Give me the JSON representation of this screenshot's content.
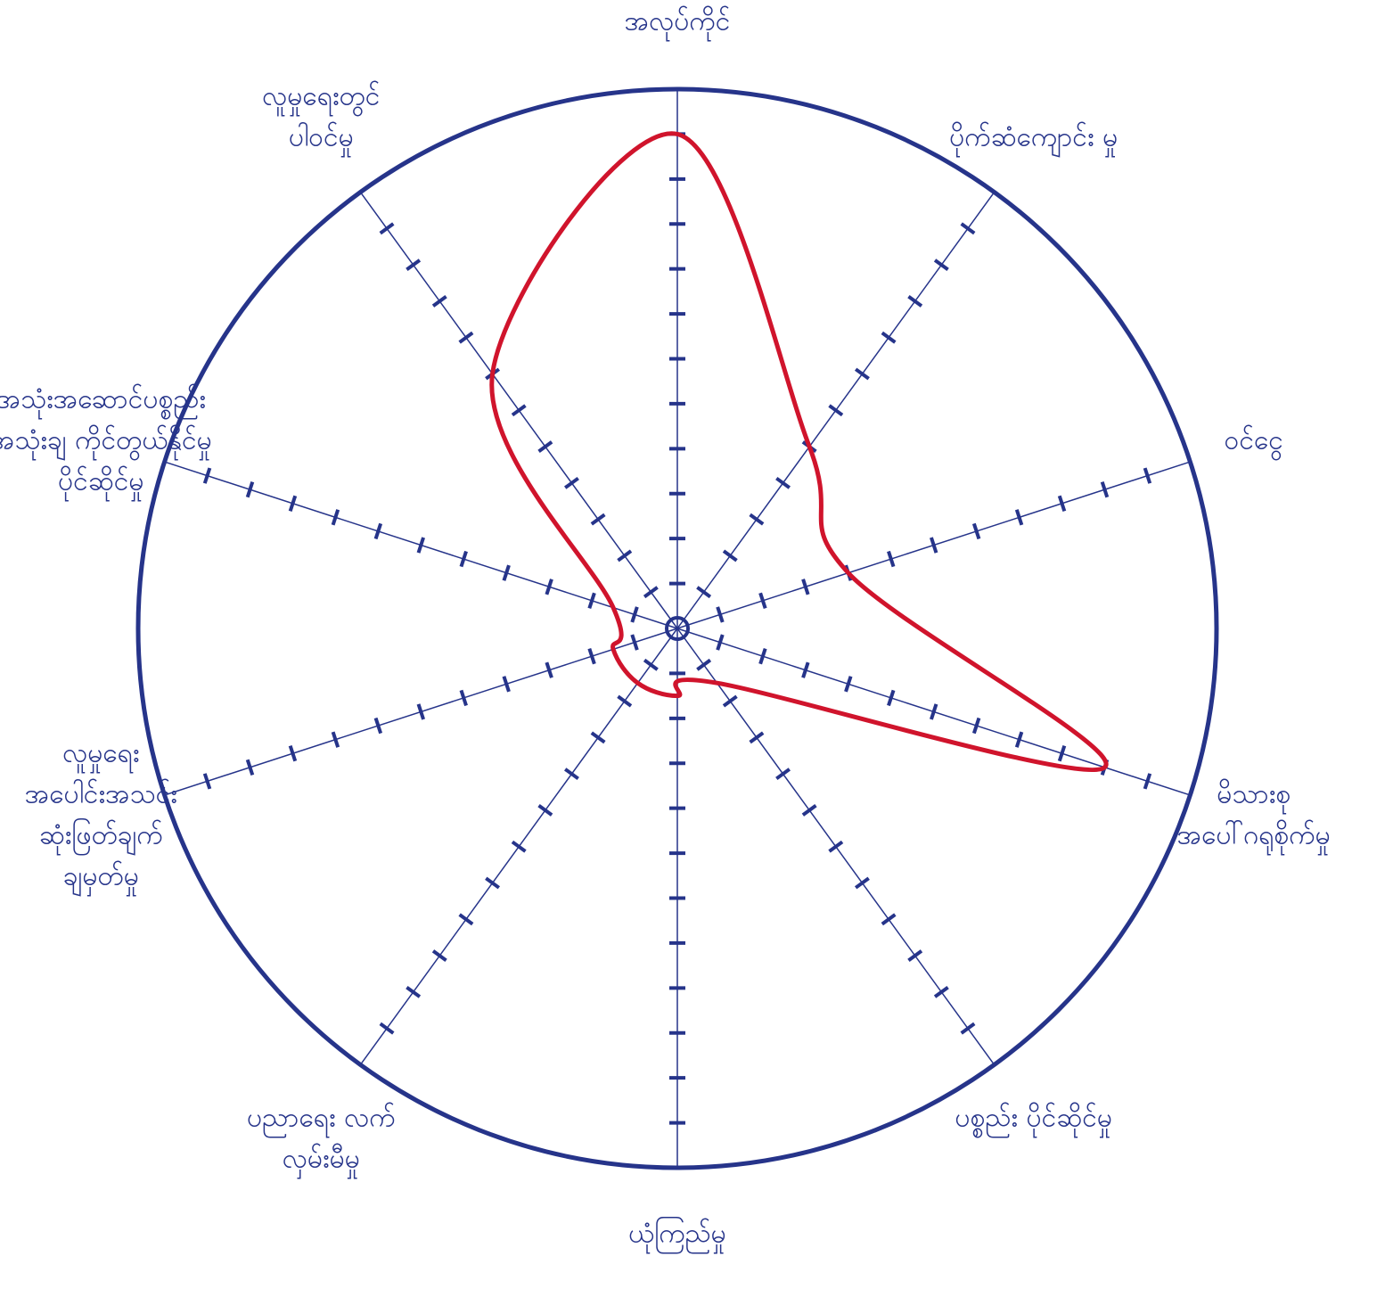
{
  "chart_data": {
    "type": "radar",
    "categories": [
      [
        "အလုပ်ကိုင်"
      ],
      [
        "ပိုက်ဆံကျောင်း မှု"
      ],
      [
        "ဝင်ငွေ"
      ],
      [
        "မိသားစု",
        "အပေါ်ဂရုစိုက်မှု"
      ],
      [
        "ပစ္စည်း ပိုင်ဆိုင်မှု"
      ],
      [
        "ယုံကြည်မှု"
      ],
      [
        "ပညာရေး လက်",
        "လှမ်းမီမှု"
      ],
      [
        "လူမှုရေး",
        "အပေါင်းအသင်း",
        "ဆုံးဖြတ်ချက်",
        "ချမှတ်မှု"
      ],
      [
        "အသုံးအဆောင်ပစ္စည်း",
        "အသုံးချ ကိုင်တွယ်နိုင်မှု",
        "ပိုင်ဆိုင်မှု"
      ],
      [
        "လူမှုရေးတွင်",
        "ပါဝင်မှု"
      ]
    ],
    "series": [
      {
        "color": "#d0142c",
        "values": [
          11,
          5,
          4,
          10,
          1.5,
          1.5,
          1.5,
          1.5,
          1.5,
          7
        ]
      }
    ],
    "rlim": [
      0,
      12
    ],
    "rticks": [
      1,
      2,
      3,
      4,
      5,
      6,
      7,
      8,
      9,
      10,
      11
    ],
    "axis_color": "#26348a"
  }
}
